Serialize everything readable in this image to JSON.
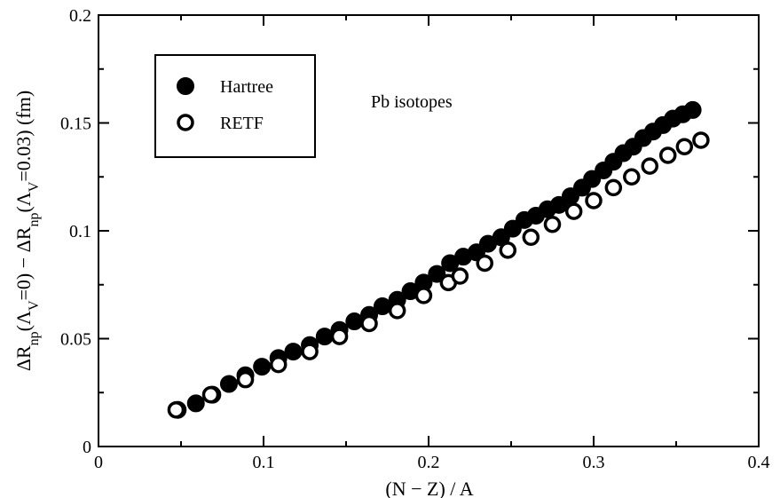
{
  "chart_data": {
    "type": "scatter",
    "xlabel": "(N − Z) / A",
    "ylabel_parts": [
      "ΔR",
      "np",
      "(Λ",
      "V",
      "=0)  − ΔR",
      "np",
      "(Λ",
      "V",
      "=0.03)   (fm)"
    ],
    "xlim": [
      0,
      0.4
    ],
    "ylim": [
      0,
      0.2
    ],
    "x_ticks": [
      0,
      0.1,
      0.2,
      0.3,
      0.4
    ],
    "x_tick_labels": [
      "0",
      "0.1",
      "0.2",
      "0.3",
      "0.4"
    ],
    "y_ticks": [
      0,
      0.05,
      0.1,
      0.15,
      0.2
    ],
    "y_tick_labels": [
      "0",
      "0.05",
      "0.1",
      "0.15",
      "0.2"
    ],
    "annotation": "Pb isotopes",
    "legend_position": "top-left",
    "grid": false,
    "series": [
      {
        "name": "Hartree",
        "marker": "filled-circle",
        "color": "#000000",
        "x": [
          0.048,
          0.059,
          0.069,
          0.079,
          0.089,
          0.099,
          0.109,
          0.118,
          0.128,
          0.137,
          0.146,
          0.155,
          0.164,
          0.172,
          0.181,
          0.189,
          0.197,
          0.205,
          0.213,
          0.221,
          0.229,
          0.236,
          0.244,
          0.251,
          0.258,
          0.265,
          0.272,
          0.279,
          0.286,
          0.293,
          0.299,
          0.306,
          0.312,
          0.318,
          0.324,
          0.33,
          0.336,
          0.342,
          0.348,
          0.354,
          0.36
        ],
        "y": [
          0.017,
          0.02,
          0.024,
          0.029,
          0.033,
          0.037,
          0.041,
          0.044,
          0.047,
          0.051,
          0.054,
          0.058,
          0.061,
          0.065,
          0.068,
          0.072,
          0.076,
          0.08,
          0.085,
          0.088,
          0.09,
          0.094,
          0.097,
          0.101,
          0.105,
          0.107,
          0.11,
          0.112,
          0.116,
          0.12,
          0.124,
          0.128,
          0.132,
          0.136,
          0.139,
          0.143,
          0.146,
          0.149,
          0.152,
          0.154,
          0.156
        ]
      },
      {
        "name": "RETF",
        "marker": "open-circle",
        "color": "#000000",
        "x": [
          0.047,
          0.068,
          0.089,
          0.109,
          0.128,
          0.146,
          0.164,
          0.181,
          0.197,
          0.212,
          0.219,
          0.234,
          0.248,
          0.262,
          0.275,
          0.288,
          0.3,
          0.312,
          0.323,
          0.334,
          0.345,
          0.355,
          0.365
        ],
        "y": [
          0.017,
          0.024,
          0.031,
          0.038,
          0.044,
          0.051,
          0.057,
          0.063,
          0.07,
          0.076,
          0.079,
          0.085,
          0.091,
          0.097,
          0.103,
          0.109,
          0.114,
          0.12,
          0.125,
          0.13,
          0.135,
          0.139,
          0.142
        ]
      }
    ]
  }
}
